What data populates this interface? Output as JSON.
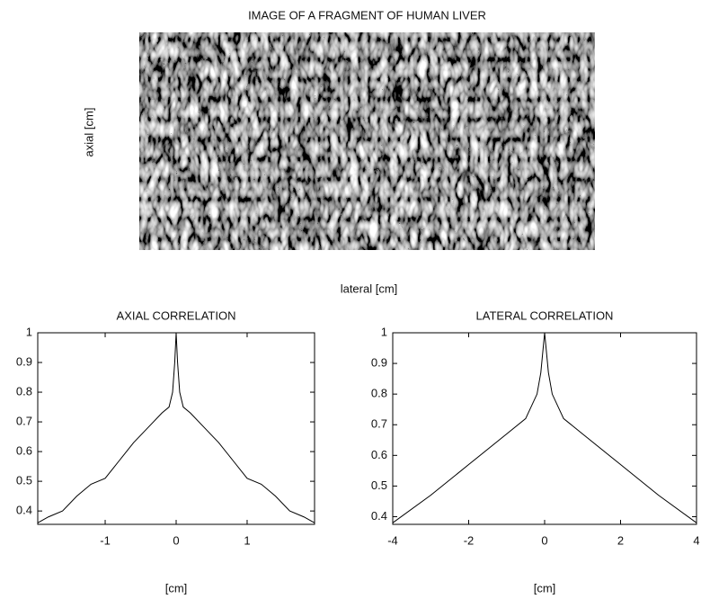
{
  "chart_data": [
    {
      "type": "image",
      "title": "IMAGE OF A FRAGMENT OF HUMAN LIVER",
      "xlabel": "lateral [cm]",
      "ylabel": "axial [cm]"
    },
    {
      "type": "line",
      "title": "AXIAL CORRELATION",
      "xlabel": "[cm]",
      "color": "#000000",
      "x": [
        -1.95,
        -1.8,
        -1.6,
        -1.4,
        -1.2,
        -1.0,
        -0.8,
        -0.6,
        -0.4,
        -0.2,
        -0.1,
        -0.05,
        -0.02,
        0,
        0.02,
        0.05,
        0.1,
        0.2,
        0.4,
        0.6,
        0.8,
        1.0,
        1.2,
        1.4,
        1.6,
        1.8,
        1.95
      ],
      "values": [
        0.36,
        0.38,
        0.4,
        0.45,
        0.49,
        0.51,
        0.57,
        0.63,
        0.68,
        0.73,
        0.75,
        0.8,
        0.9,
        1.0,
        0.9,
        0.8,
        0.75,
        0.73,
        0.68,
        0.63,
        0.57,
        0.51,
        0.49,
        0.45,
        0.4,
        0.38,
        0.36
      ],
      "xlim": [
        -1.95,
        1.95
      ],
      "ylim": [
        0.355,
        1
      ],
      "xticks": [
        -1,
        0,
        1
      ],
      "yticks": [
        0.4,
        0.5,
        0.6,
        0.7,
        0.8,
        0.9,
        1
      ]
    },
    {
      "type": "line",
      "title": "LATERAL CORRELATION",
      "xlabel": "[cm]",
      "color": "#000000",
      "x": [
        -4,
        -3,
        -2,
        -1,
        -0.5,
        -0.2,
        -0.1,
        0,
        0.1,
        0.2,
        0.5,
        1,
        2,
        3,
        4
      ],
      "values": [
        0.38,
        0.47,
        0.57,
        0.67,
        0.72,
        0.8,
        0.87,
        1.0,
        0.87,
        0.8,
        0.72,
        0.67,
        0.57,
        0.47,
        0.38
      ],
      "xlim": [
        -4,
        4
      ],
      "ylim": [
        0.375,
        1
      ],
      "xticks": [
        -4,
        -2,
        0,
        2,
        4
      ],
      "yticks": [
        0.4,
        0.5,
        0.6,
        0.7,
        0.8,
        0.9,
        1
      ]
    }
  ]
}
